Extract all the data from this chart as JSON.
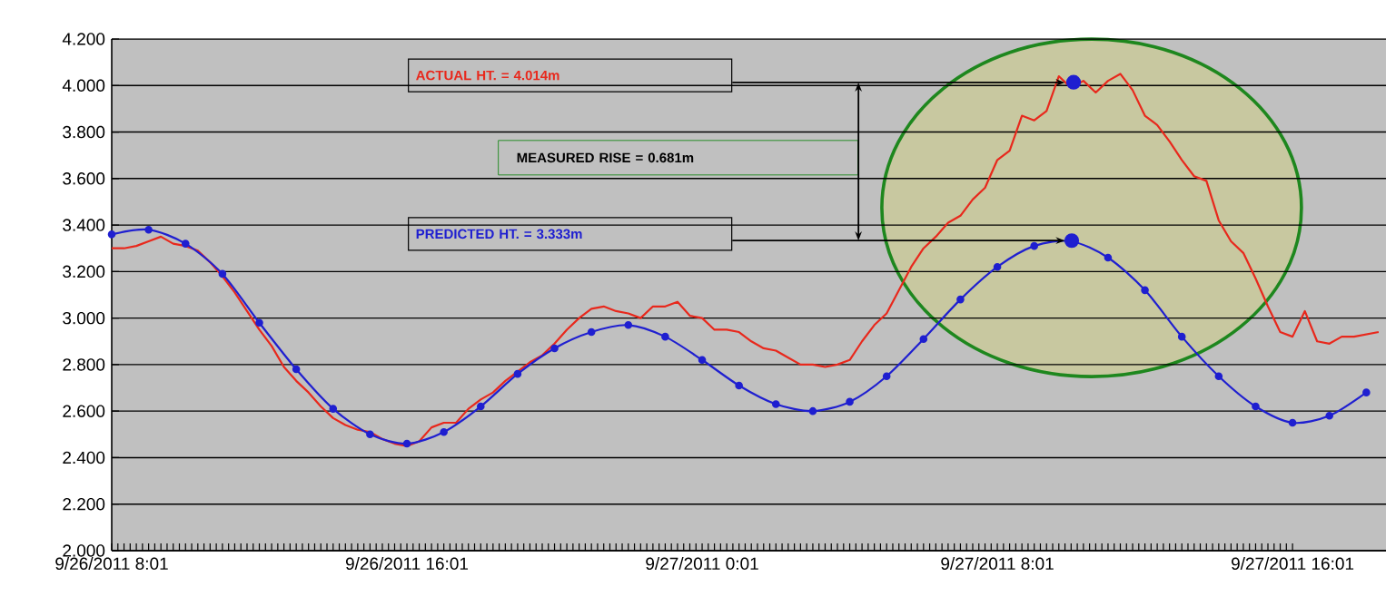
{
  "chart_data": {
    "type": "line",
    "xlim": [
      "2011-09-26T08:01",
      "2011-09-27T18:33"
    ],
    "ylim": [
      2.0,
      4.2
    ],
    "xticks": [
      {
        "value": "2011-09-26T08:01",
        "label": "9/26/2011 8:01"
      },
      {
        "value": "2011-09-26T16:01",
        "label": "9/26/2011 16:01"
      },
      {
        "value": "2011-09-27T00:01",
        "label": "9/27/2011 0:01"
      },
      {
        "value": "2011-09-27T08:01",
        "label": "9/27/2011 8:01"
      },
      {
        "value": "2011-09-27T16:01",
        "label": "9/27/2011 16:01"
      }
    ],
    "yticks": [
      {
        "value": 2.0,
        "label": "2.000"
      },
      {
        "value": 2.2,
        "label": "2.200"
      },
      {
        "value": 2.4,
        "label": "2.400"
      },
      {
        "value": 2.6,
        "label": "2.600"
      },
      {
        "value": 2.8,
        "label": "2.800"
      },
      {
        "value": 3.0,
        "label": "3.000"
      },
      {
        "value": 3.2,
        "label": "3.200"
      },
      {
        "value": 3.4,
        "label": "3.400"
      },
      {
        "value": 3.6,
        "label": "3.600"
      },
      {
        "value": 3.8,
        "label": "3.800"
      },
      {
        "value": 4.0,
        "label": "4.000"
      },
      {
        "value": 4.2,
        "label": "4.200"
      }
    ],
    "grid": "y",
    "line_style": "solid",
    "series": [
      {
        "color": "#e8281c",
        "marker": "none",
        "x": [
          "2011-09-26T08:01",
          "2011-09-26T08:21",
          "2011-09-26T08:41",
          "2011-09-26T09:01",
          "2011-09-26T09:21",
          "2011-09-26T09:41",
          "2011-09-26T10:01",
          "2011-09-26T10:21",
          "2011-09-26T10:41",
          "2011-09-26T11:01",
          "2011-09-26T11:21",
          "2011-09-26T11:41",
          "2011-09-26T12:01",
          "2011-09-26T12:21",
          "2011-09-26T12:41",
          "2011-09-26T13:01",
          "2011-09-26T13:21",
          "2011-09-26T13:41",
          "2011-09-26T14:01",
          "2011-09-26T14:21",
          "2011-09-26T14:41",
          "2011-09-26T15:01",
          "2011-09-26T15:21",
          "2011-09-26T15:41",
          "2011-09-26T16:01",
          "2011-09-26T16:21",
          "2011-09-26T16:41",
          "2011-09-26T17:01",
          "2011-09-26T17:21",
          "2011-09-26T17:41",
          "2011-09-26T18:01",
          "2011-09-26T18:21",
          "2011-09-26T18:41",
          "2011-09-26T19:01",
          "2011-09-26T19:21",
          "2011-09-26T19:41",
          "2011-09-26T20:01",
          "2011-09-26T20:21",
          "2011-09-26T20:41",
          "2011-09-26T21:01",
          "2011-09-26T21:21",
          "2011-09-26T21:41",
          "2011-09-26T22:01",
          "2011-09-26T22:21",
          "2011-09-26T22:41",
          "2011-09-26T23:01",
          "2011-09-26T23:21",
          "2011-09-26T23:41",
          "2011-09-27T00:01",
          "2011-09-27T00:21",
          "2011-09-27T00:41",
          "2011-09-27T01:01",
          "2011-09-27T01:21",
          "2011-09-27T01:41",
          "2011-09-27T02:01",
          "2011-09-27T02:21",
          "2011-09-27T02:41",
          "2011-09-27T03:01",
          "2011-09-27T03:21",
          "2011-09-27T03:41",
          "2011-09-27T04:01",
          "2011-09-27T04:21",
          "2011-09-27T04:41",
          "2011-09-27T05:01",
          "2011-09-27T05:21",
          "2011-09-27T05:41",
          "2011-09-27T06:01",
          "2011-09-27T06:21",
          "2011-09-27T06:41",
          "2011-09-27T07:01",
          "2011-09-27T07:21",
          "2011-09-27T07:41",
          "2011-09-27T08:01",
          "2011-09-27T08:21",
          "2011-09-27T08:41",
          "2011-09-27T09:01",
          "2011-09-27T09:21",
          "2011-09-27T09:41",
          "2011-09-27T10:01",
          "2011-09-27T10:21",
          "2011-09-27T10:41",
          "2011-09-27T11:01",
          "2011-09-27T11:21",
          "2011-09-27T11:41",
          "2011-09-27T12:01",
          "2011-09-27T12:21",
          "2011-09-27T12:41",
          "2011-09-27T13:01",
          "2011-09-27T13:21",
          "2011-09-27T13:41",
          "2011-09-27T14:01",
          "2011-09-27T14:21",
          "2011-09-27T14:41",
          "2011-09-27T15:01",
          "2011-09-27T15:21",
          "2011-09-27T15:41",
          "2011-09-27T16:01",
          "2011-09-27T16:21",
          "2011-09-27T16:41",
          "2011-09-27T17:01",
          "2011-09-27T17:21",
          "2011-09-27T17:41",
          "2011-09-27T18:01",
          "2011-09-27T18:21"
        ],
        "values": [
          3.3,
          3.3,
          3.31,
          3.33,
          3.35,
          3.32,
          3.31,
          3.29,
          3.24,
          3.18,
          3.11,
          3.03,
          2.95,
          2.88,
          2.79,
          2.73,
          2.68,
          2.62,
          2.57,
          2.54,
          2.52,
          2.51,
          2.48,
          2.46,
          2.45,
          2.47,
          2.53,
          2.55,
          2.55,
          2.61,
          2.65,
          2.68,
          2.73,
          2.77,
          2.81,
          2.84,
          2.89,
          2.95,
          3.0,
          3.04,
          3.05,
          3.03,
          3.02,
          3.0,
          3.05,
          3.05,
          3.07,
          3.01,
          3.0,
          2.95,
          2.95,
          2.94,
          2.9,
          2.87,
          2.86,
          2.83,
          2.8,
          2.8,
          2.79,
          2.8,
          2.82,
          2.9,
          2.97,
          3.02,
          3.12,
          3.22,
          3.3,
          3.35,
          3.41,
          3.44,
          3.51,
          3.56,
          3.68,
          3.72,
          3.87,
          3.85,
          3.89,
          4.04,
          3.99,
          4.02,
          3.97,
          4.02,
          4.05,
          3.98,
          3.87,
          3.83,
          3.76,
          3.68,
          3.61,
          3.59,
          3.42,
          3.33,
          3.28,
          3.17,
          3.05,
          2.94,
          2.92,
          3.03,
          2.9,
          2.89,
          2.92,
          2.92,
          2.93,
          2.94
        ]
      },
      {
        "color": "#1f1fd0",
        "marker": "circle",
        "x": [
          "2011-09-26T08:01",
          "2011-09-26T09:01",
          "2011-09-26T10:01",
          "2011-09-26T11:01",
          "2011-09-26T12:01",
          "2011-09-26T13:01",
          "2011-09-26T14:01",
          "2011-09-26T15:01",
          "2011-09-26T16:01",
          "2011-09-26T17:01",
          "2011-09-26T18:01",
          "2011-09-26T19:01",
          "2011-09-26T20:01",
          "2011-09-26T21:01",
          "2011-09-26T22:01",
          "2011-09-26T23:01",
          "2011-09-27T00:01",
          "2011-09-27T01:01",
          "2011-09-27T02:01",
          "2011-09-27T03:01",
          "2011-09-27T04:01",
          "2011-09-27T05:01",
          "2011-09-27T06:01",
          "2011-09-27T07:01",
          "2011-09-27T08:01",
          "2011-09-27T09:01",
          "2011-09-27T10:01",
          "2011-09-27T11:01",
          "2011-09-27T12:01",
          "2011-09-27T13:01",
          "2011-09-27T14:01",
          "2011-09-27T15:01",
          "2011-09-27T16:01",
          "2011-09-27T17:01",
          "2011-09-27T18:01"
        ],
        "values": [
          3.36,
          3.38,
          3.32,
          3.19,
          2.98,
          2.78,
          2.61,
          2.5,
          2.46,
          2.51,
          2.62,
          2.76,
          2.87,
          2.94,
          2.97,
          2.92,
          2.82,
          2.71,
          2.63,
          2.6,
          2.64,
          2.75,
          2.91,
          3.08,
          3.22,
          3.31,
          3.33,
          3.26,
          3.12,
          2.92,
          2.75,
          2.62,
          2.55,
          2.58,
          2.68
        ]
      },
      {
        "type": "scatter",
        "color": "#1f1fd0",
        "marker": "circle",
        "x": [
          "2011-09-27T10:05",
          "2011-09-27T10:02"
        ],
        "values": [
          4.014,
          3.333
        ]
      }
    ],
    "annotations": [
      "ACTUAL HT. = 4.014m",
      "PREDICTED HT. = 3.333m",
      "MEASURED RISE = 0.681m"
    ]
  }
}
